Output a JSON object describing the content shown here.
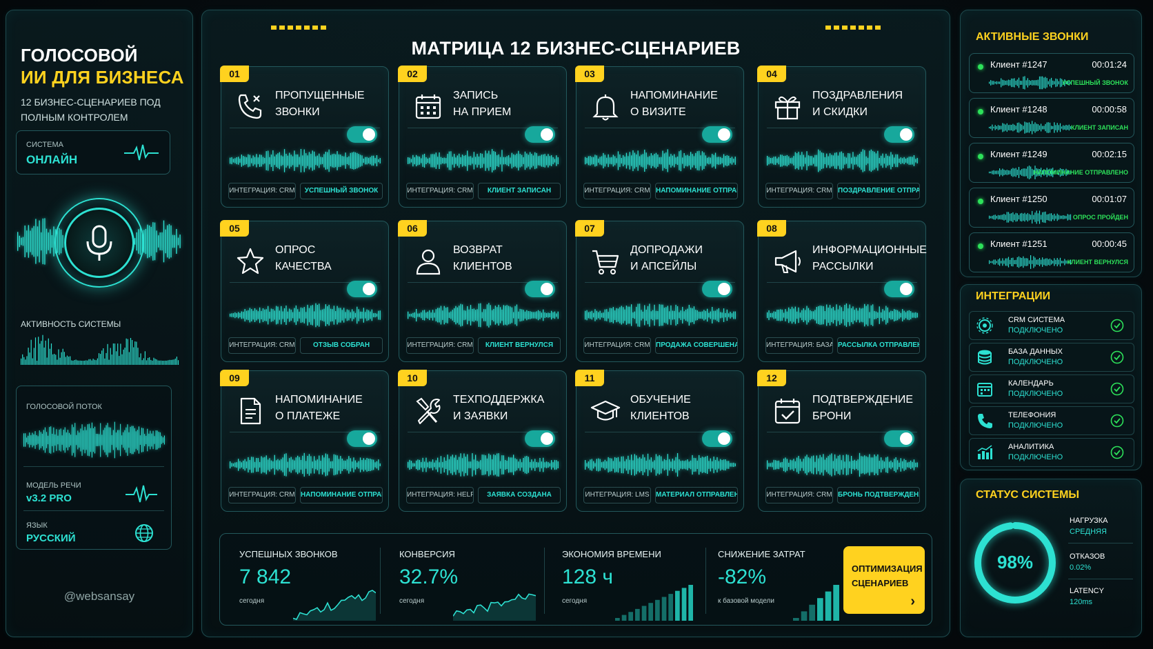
{
  "brand": {
    "line1": "ГОЛОСОВОЙ",
    "line2": "ИИ ДЛЯ БИЗНЕСА",
    "subtitle": "12 БИЗНЕС-СЦЕНАРИЕВ ПОД ПОЛНЫМ КОНТРОЛЕМ"
  },
  "system": {
    "label": "СИСТЕМА",
    "value": "ОНЛАЙН"
  },
  "activity_label": "АКТИВНОСТЬ СИСТЕМЫ",
  "voice_stream_label": "ГОЛОСОВОЙ ПОТОК",
  "speech_model": {
    "label": "МОДЕЛЬ РЕЧИ",
    "value": "v3.2 PRO"
  },
  "language": {
    "label": "ЯЗЫК",
    "value": "РУССКИЙ"
  },
  "handle": "@websansay",
  "matrix_title": "МАТРИЦА 12 БИЗНЕС-СЦЕНАРИЕВ",
  "scenarios": [
    {
      "num": "01",
      "line1": "ПРОПУЩЕННЫЕ",
      "line2": "ЗВОНКИ",
      "icon": "missed-call-icon",
      "integration": "ИНТЕГРАЦИЯ: CRM",
      "result": "УСПЕШНЫЙ ЗВОНОК"
    },
    {
      "num": "02",
      "line1": "ЗАПИСЬ",
      "line2": "НА ПРИЕМ",
      "icon": "calendar-icon",
      "integration": "ИНТЕГРАЦИЯ: CRM",
      "result": "КЛИЕНТ ЗАПИСАН"
    },
    {
      "num": "03",
      "line1": "НАПОМИНАНИЕ",
      "line2": "О ВИЗИТЕ",
      "icon": "bell-icon",
      "integration": "ИНТЕГРАЦИЯ: CRM",
      "result": "НАПОМИНАНИЕ ОТПРАВЛЕНО"
    },
    {
      "num": "04",
      "line1": "ПОЗДРАВЛЕНИЯ",
      "line2": "И СКИДКИ",
      "icon": "gift-icon",
      "integration": "ИНТЕГРАЦИЯ: CRM",
      "result": "ПОЗДРАВЛЕНИЕ ОТПРАВЛЕНО"
    },
    {
      "num": "05",
      "line1": "ОПРОС",
      "line2": "КАЧЕСТВА",
      "icon": "star-icon",
      "integration": "ИНТЕГРАЦИЯ: CRM",
      "result": "ОТЗЫВ СОБРАН"
    },
    {
      "num": "06",
      "line1": "ВОЗВРАТ",
      "line2": "КЛИЕНТОВ",
      "icon": "user-icon",
      "integration": "ИНТЕГРАЦИЯ: CRM",
      "result": "КЛИЕНТ ВЕРНУЛСЯ"
    },
    {
      "num": "07",
      "line1": "ДОПРОДАЖИ",
      "line2": "И АПСЕЙЛЫ",
      "icon": "cart-icon",
      "integration": "ИНТЕГРАЦИЯ: CRM",
      "result": "ПРОДАЖА СОВЕРШЕНА"
    },
    {
      "num": "08",
      "line1": "ИНФОРМАЦИОННЫЕ",
      "line2": "РАССЫЛКИ",
      "icon": "megaphone-icon",
      "integration": "ИНТЕГРАЦИЯ: БАЗА",
      "result": "РАССЫЛКА ОТПРАВЛЕНА"
    },
    {
      "num": "09",
      "line1": "НАПОМИНАНИЕ",
      "line2": "О ПЛАТЕЖЕ",
      "icon": "document-icon",
      "integration": "ИНТЕГРАЦИЯ: CRM",
      "result": "НАПОМИНАНИЕ ОТПРАВЛЕНО"
    },
    {
      "num": "10",
      "line1": "ТЕХПОДДЕРЖКА",
      "line2": "И ЗАЯВКИ",
      "icon": "tools-icon",
      "integration": "ИНТЕГРАЦИЯ: HELP DESK",
      "result": "ЗАЯВКА СОЗДАНА"
    },
    {
      "num": "11",
      "line1": "ОБУЧЕНИЕ",
      "line2": "КЛИЕНТОВ",
      "icon": "graduation-cap-icon",
      "integration": "ИНТЕГРАЦИЯ: LMS",
      "result": "МАТЕРИАЛ ОТПРАВЛЕН"
    },
    {
      "num": "12",
      "line1": "ПОДТВЕРЖДЕНИЕ",
      "line2": "БРОНИ",
      "icon": "calendar-check-icon",
      "integration": "ИНТЕГРАЦИЯ: CRM",
      "result": "БРОНЬ ПОДТВЕРЖДЕНА"
    }
  ],
  "stats": [
    {
      "label": "УСПЕШНЫХ ЗВОНКОВ",
      "value": "7 842",
      "note": "сегодня"
    },
    {
      "label": "КОНВЕРСИЯ",
      "value": "32.7%",
      "note": "сегодня"
    },
    {
      "label": "ЭКОНОМИЯ ВРЕМЕНИ",
      "value": "128 ч",
      "note": "сегодня"
    },
    {
      "label": "СНИЖЕНИЕ ЗАТРАТ",
      "value": "-82%",
      "note": "к базовой модели"
    }
  ],
  "optimize_button": {
    "line1": "ОПТИМИЗАЦИЯ",
    "line2": "СЦЕНАРИЕВ",
    "arrow": "›"
  },
  "active_calls": {
    "title": "АКТИВНЫЕ ЗВОНКИ",
    "items": [
      {
        "name": "Клиент #1247",
        "time": "00:01:24",
        "status": "УСПЕШНЫЙ ЗВОНОК"
      },
      {
        "name": "Клиент #1248",
        "time": "00:00:58",
        "status": "КЛИЕНТ ЗАПИСАН"
      },
      {
        "name": "Клиент #1249",
        "time": "00:02:15",
        "status": "НАПОМИНАНИЕ ОТПРАВЛЕНО"
      },
      {
        "name": "Клиент #1250",
        "time": "00:01:07",
        "status": "ОПРОС ПРОЙДЕН"
      },
      {
        "name": "Клиент #1251",
        "time": "00:00:45",
        "status": "КЛИЕНТ ВЕРНУЛСЯ"
      }
    ]
  },
  "integrations": {
    "title": "ИНТЕГРАЦИИ",
    "items": [
      {
        "name": "CRM СИСТЕМА",
        "state": "ПОДКЛЮЧЕНО",
        "icon": "crm-gear-icon"
      },
      {
        "name": "БАЗА ДАННЫХ",
        "state": "ПОДКЛЮЧЕНО",
        "icon": "database-icon"
      },
      {
        "name": "КАЛЕНДАРЬ",
        "state": "ПОДКЛЮЧЕНО",
        "icon": "calendar-icon"
      },
      {
        "name": "ТЕЛЕФОНИЯ",
        "state": "ПОДКЛЮЧЕНО",
        "icon": "phone-icon"
      },
      {
        "name": "АНАЛИТИКА",
        "state": "ПОДКЛЮЧЕНО",
        "icon": "analytics-icon"
      }
    ]
  },
  "system_status": {
    "title": "СТАТУС СИСТЕМЫ",
    "percent_label": "98%",
    "percent": 98,
    "load_label": "НАГРУЗКА",
    "load_value": "СРЕДНЯЯ",
    "fail_label": "ОТКАЗОВ",
    "fail_value": "0.02%",
    "latency_label": "LATENCY",
    "latency_value": "120ms"
  },
  "colors": {
    "accent": "#2de1d2",
    "highlight": "#ffd21f",
    "success": "#2de15a",
    "background": "#060c0f"
  }
}
